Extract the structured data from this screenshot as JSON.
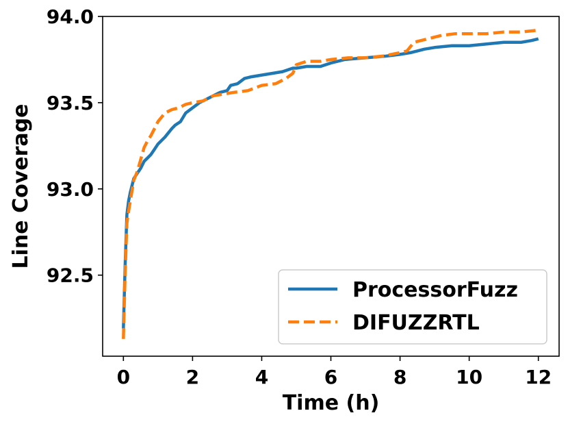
{
  "chart_data": {
    "type": "line",
    "title": "",
    "xlabel": "Time (h)",
    "ylabel": "Line Coverage",
    "xlim": [
      -0.6,
      12.6
    ],
    "ylim": [
      92.03,
      94.0
    ],
    "xticks": [
      0,
      2,
      4,
      6,
      8,
      10,
      12
    ],
    "yticks": [
      92.5,
      93.0,
      93.5,
      94.0
    ],
    "xtick_labels": [
      "0",
      "2",
      "4",
      "6",
      "8",
      "10",
      "12"
    ],
    "ytick_labels": [
      "92.5",
      "93.0",
      "93.5",
      "94.0"
    ],
    "grid": false,
    "legend_position": "lower-right",
    "series": [
      {
        "name": "ProcessorFuzz",
        "color": "#1f77b4",
        "style": "solid",
        "points": [
          [
            0.0,
            92.19
          ],
          [
            0.05,
            92.55
          ],
          [
            0.1,
            92.85
          ],
          [
            0.15,
            92.93
          ],
          [
            0.2,
            92.98
          ],
          [
            0.3,
            93.06
          ],
          [
            0.4,
            93.09
          ],
          [
            0.5,
            93.12
          ],
          [
            0.6,
            93.16
          ],
          [
            0.7,
            93.18
          ],
          [
            0.8,
            93.2
          ],
          [
            0.9,
            93.23
          ],
          [
            1.0,
            93.26
          ],
          [
            1.2,
            93.3
          ],
          [
            1.4,
            93.35
          ],
          [
            1.5,
            93.37
          ],
          [
            1.65,
            93.39
          ],
          [
            1.8,
            93.44
          ],
          [
            2.0,
            93.47
          ],
          [
            2.2,
            93.5
          ],
          [
            2.4,
            93.52
          ],
          [
            2.6,
            93.54
          ],
          [
            2.8,
            93.56
          ],
          [
            3.0,
            93.57
          ],
          [
            3.1,
            93.6
          ],
          [
            3.3,
            93.61
          ],
          [
            3.5,
            93.64
          ],
          [
            3.7,
            93.65
          ],
          [
            4.0,
            93.66
          ],
          [
            4.3,
            93.67
          ],
          [
            4.6,
            93.68
          ],
          [
            4.9,
            93.7
          ],
          [
            5.0,
            93.7
          ],
          [
            5.3,
            93.71
          ],
          [
            5.7,
            93.71
          ],
          [
            6.0,
            93.73
          ],
          [
            6.4,
            93.75
          ],
          [
            7.0,
            93.76
          ],
          [
            7.6,
            93.77
          ],
          [
            8.0,
            93.78
          ],
          [
            8.3,
            93.79
          ],
          [
            8.5,
            93.8
          ],
          [
            8.7,
            93.81
          ],
          [
            9.0,
            93.82
          ],
          [
            9.5,
            93.83
          ],
          [
            10.0,
            93.83
          ],
          [
            10.5,
            93.84
          ],
          [
            11.0,
            93.85
          ],
          [
            11.5,
            93.85
          ],
          [
            11.8,
            93.86
          ],
          [
            12.0,
            93.87
          ]
        ]
      },
      {
        "name": "DIFUZZRTL",
        "color": "#ff7f0e",
        "style": "dashed",
        "points": [
          [
            0.0,
            92.13
          ],
          [
            0.05,
            92.5
          ],
          [
            0.1,
            92.8
          ],
          [
            0.15,
            92.87
          ],
          [
            0.2,
            92.93
          ],
          [
            0.3,
            93.05
          ],
          [
            0.4,
            93.1
          ],
          [
            0.5,
            93.17
          ],
          [
            0.6,
            93.24
          ],
          [
            0.7,
            93.28
          ],
          [
            0.8,
            93.31
          ],
          [
            0.9,
            93.35
          ],
          [
            1.0,
            93.39
          ],
          [
            1.2,
            93.44
          ],
          [
            1.4,
            93.46
          ],
          [
            1.6,
            93.47
          ],
          [
            1.8,
            93.49
          ],
          [
            2.0,
            93.5
          ],
          [
            2.3,
            93.51
          ],
          [
            2.6,
            93.54
          ],
          [
            2.9,
            93.55
          ],
          [
            3.2,
            93.56
          ],
          [
            3.6,
            93.57
          ],
          [
            4.0,
            93.6
          ],
          [
            4.4,
            93.61
          ],
          [
            4.7,
            93.64
          ],
          [
            4.9,
            93.67
          ],
          [
            5.0,
            93.72
          ],
          [
            5.3,
            93.74
          ],
          [
            5.7,
            93.74
          ],
          [
            6.0,
            93.75
          ],
          [
            6.5,
            93.76
          ],
          [
            7.0,
            93.76
          ],
          [
            7.5,
            93.77
          ],
          [
            8.0,
            93.79
          ],
          [
            8.2,
            93.8
          ],
          [
            8.4,
            93.85
          ],
          [
            8.8,
            93.87
          ],
          [
            9.2,
            93.89
          ],
          [
            9.6,
            93.9
          ],
          [
            10.0,
            93.9
          ],
          [
            10.5,
            93.9
          ],
          [
            11.0,
            93.91
          ],
          [
            11.5,
            93.91
          ],
          [
            12.0,
            93.92
          ]
        ]
      }
    ]
  }
}
